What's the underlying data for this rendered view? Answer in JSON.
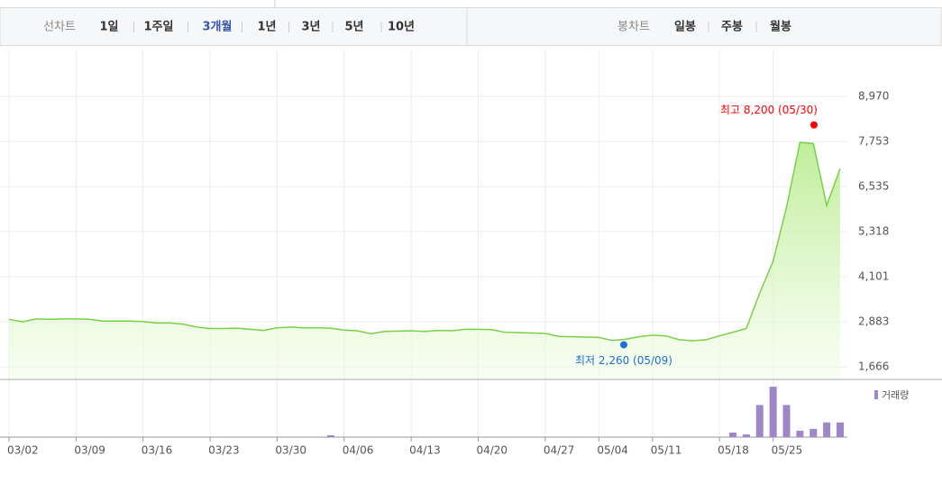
{
  "chart_data": {
    "type": "line",
    "tabs": {
      "line_label": "선차트",
      "periods": [
        "1일",
        "1주일",
        "3개월",
        "1년",
        "3년",
        "5년",
        "10년"
      ],
      "selected": 2,
      "candle_label": "봉차트",
      "candles": [
        "일봉",
        "주봉",
        "월봉"
      ]
    },
    "categories": [
      "03/02",
      null,
      null,
      null,
      null,
      "03/09",
      null,
      null,
      null,
      null,
      "03/16",
      null,
      null,
      null,
      null,
      "03/23",
      null,
      null,
      null,
      null,
      "03/30",
      null,
      null,
      null,
      null,
      "04/06",
      null,
      null,
      null,
      null,
      "04/13",
      null,
      null,
      null,
      null,
      "04/20",
      null,
      null,
      null,
      null,
      "04/27",
      null,
      null,
      null,
      "05/04",
      null,
      null,
      null,
      "05/11",
      null,
      null,
      null,
      null,
      "05/18",
      null,
      null,
      null,
      "05/25",
      null,
      null,
      null,
      null,
      null
    ],
    "values": [
      2950,
      2880,
      2960,
      2950,
      2960,
      2960,
      2950,
      2900,
      2900,
      2900,
      2890,
      2850,
      2850,
      2820,
      2740,
      2700,
      2700,
      2710,
      2680,
      2650,
      2720,
      2740,
      2720,
      2720,
      2710,
      2660,
      2640,
      2560,
      2620,
      2630,
      2640,
      2620,
      2650,
      2640,
      2680,
      2680,
      2670,
      2600,
      2590,
      2580,
      2570,
      2490,
      2480,
      2470,
      2460,
      2380,
      2410,
      2480,
      2520,
      2500,
      2400,
      2370,
      2400,
      2500,
      2600,
      2700,
      3660,
      4515,
      5975,
      7728,
      7700,
      6024,
      7022
    ],
    "color": "#79d04a",
    "ylim": [
      1666,
      8970
    ],
    "yticks": [
      {
        "value": 1666,
        "label": "1,666"
      },
      {
        "value": 2883,
        "label": "2,883"
      },
      {
        "value": 4101,
        "label": "4,101"
      },
      {
        "value": 5318,
        "label": "5,318"
      },
      {
        "value": 6535,
        "label": "6,535"
      },
      {
        "value": 7753,
        "label": "7,753"
      },
      {
        "value": 8970,
        "label": "8,970"
      }
    ],
    "grid": true,
    "annotations": [
      {
        "text": "최고 8,200 (05/30)",
        "value": 8200,
        "color": "#ff0000"
      },
      {
        "text": "최저 2,260 (05/09)",
        "value": 2260,
        "color": "#1e6fd9"
      }
    ],
    "volume": {
      "name": "거래량",
      "color": "#9d87c9",
      "ylim": [
        0,
        60
      ],
      "values": [
        0,
        0,
        0,
        0,
        0,
        0,
        0,
        0,
        0,
        0,
        0,
        0,
        0,
        0,
        0,
        0,
        0,
        0,
        0,
        0,
        0,
        0,
        0,
        0,
        2,
        0,
        0,
        0,
        0,
        0,
        0,
        0,
        0,
        0,
        0,
        0,
        0,
        0,
        0,
        0,
        0,
        0,
        0,
        0,
        0,
        0,
        0,
        0,
        0,
        0,
        0,
        0,
        0,
        0,
        5,
        3,
        35,
        55,
        35,
        7,
        9,
        16,
        16
      ]
    }
  }
}
